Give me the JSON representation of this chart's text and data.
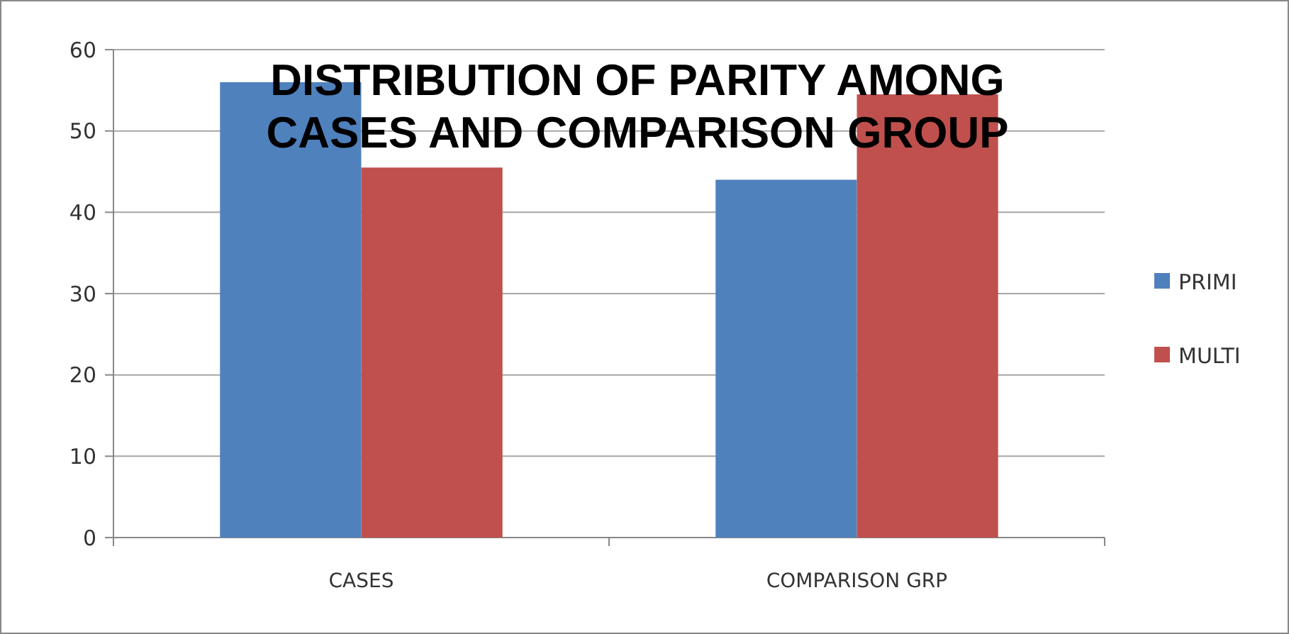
{
  "chart_data": {
    "type": "bar",
    "title": "DISTRIBUTION OF PARITY AMONG CASES AND COMPARISON GROUP",
    "categories": [
      "CASES",
      "COMPARISON GRP"
    ],
    "series": [
      {
        "name": "PRIMI",
        "color": "#4f81bd",
        "values": [
          56,
          44
        ]
      },
      {
        "name": "MULTI",
        "color": "#c0504d",
        "values": [
          45.5,
          54.5
        ]
      }
    ],
    "ylim": [
      0,
      60
    ],
    "yticks": [
      0,
      10,
      20,
      30,
      40,
      50,
      60
    ],
    "grid": "y",
    "legend": "right"
  }
}
